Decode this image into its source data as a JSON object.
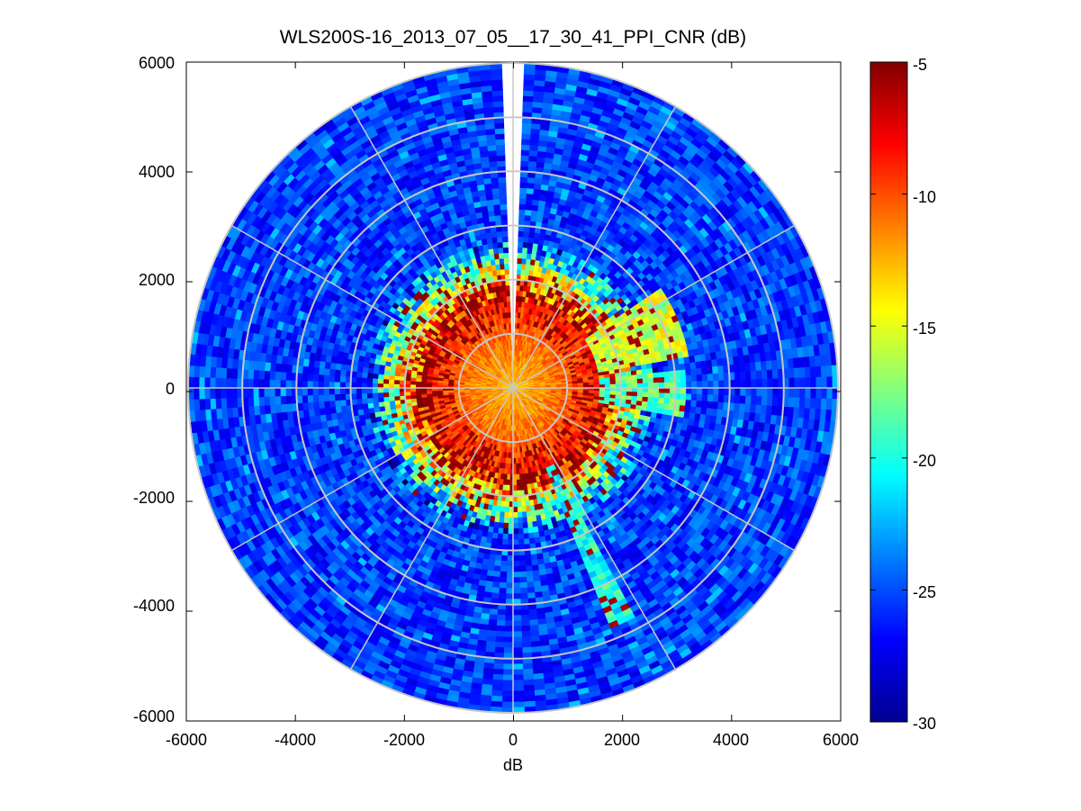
{
  "chart_data": {
    "type": "heatmap",
    "subtype": "polar-ppi",
    "title": "WLS200S-16_2013_07_05__17_30_41_PPI_CNR (dB)",
    "xlabel": "dB",
    "ylabel": "",
    "xlim": [
      -6000,
      6000
    ],
    "ylim": [
      -6000,
      6000
    ],
    "x_ticks": [
      "-6000",
      "-4000",
      "-2000",
      "0",
      "2000",
      "4000",
      "6000"
    ],
    "y_ticks": [
      "6000",
      "4000",
      "2000",
      "0",
      "-2000",
      "-4000",
      "-6000"
    ],
    "max_range": 6000,
    "range_rings": [
      1000,
      2000,
      3000,
      4000,
      5000,
      6000
    ],
    "spoke_angles_deg": [
      0,
      30,
      60,
      90,
      120,
      150,
      180,
      210,
      240,
      270,
      300,
      330
    ],
    "missing_sector_deg": [
      -1.5,
      1.5
    ],
    "colorbar": {
      "colormap": "jet",
      "min": -30,
      "max": -5,
      "ticks": [
        "-5",
        "-10",
        "-15",
        "-20",
        "-25",
        "-30"
      ]
    },
    "cnr_profile": {
      "near_range_value_db": -11,
      "near_range_limit_m": 1600,
      "transition_end_m": 2700,
      "far_range_value_db": -25.5
    },
    "bright_sectors": [
      {
        "azimuth_deg": 68,
        "width_deg": 24,
        "range_m": [
          1600,
          3300
        ],
        "value_db": -15.5
      },
      {
        "azimuth_deg": 92,
        "width_deg": 14,
        "range_m": [
          1600,
          3200
        ],
        "value_db": -18.5
      },
      {
        "azimuth_deg": 155,
        "width_deg": 4,
        "range_m": [
          1600,
          4800
        ],
        "value_db": -20
      }
    ]
  }
}
